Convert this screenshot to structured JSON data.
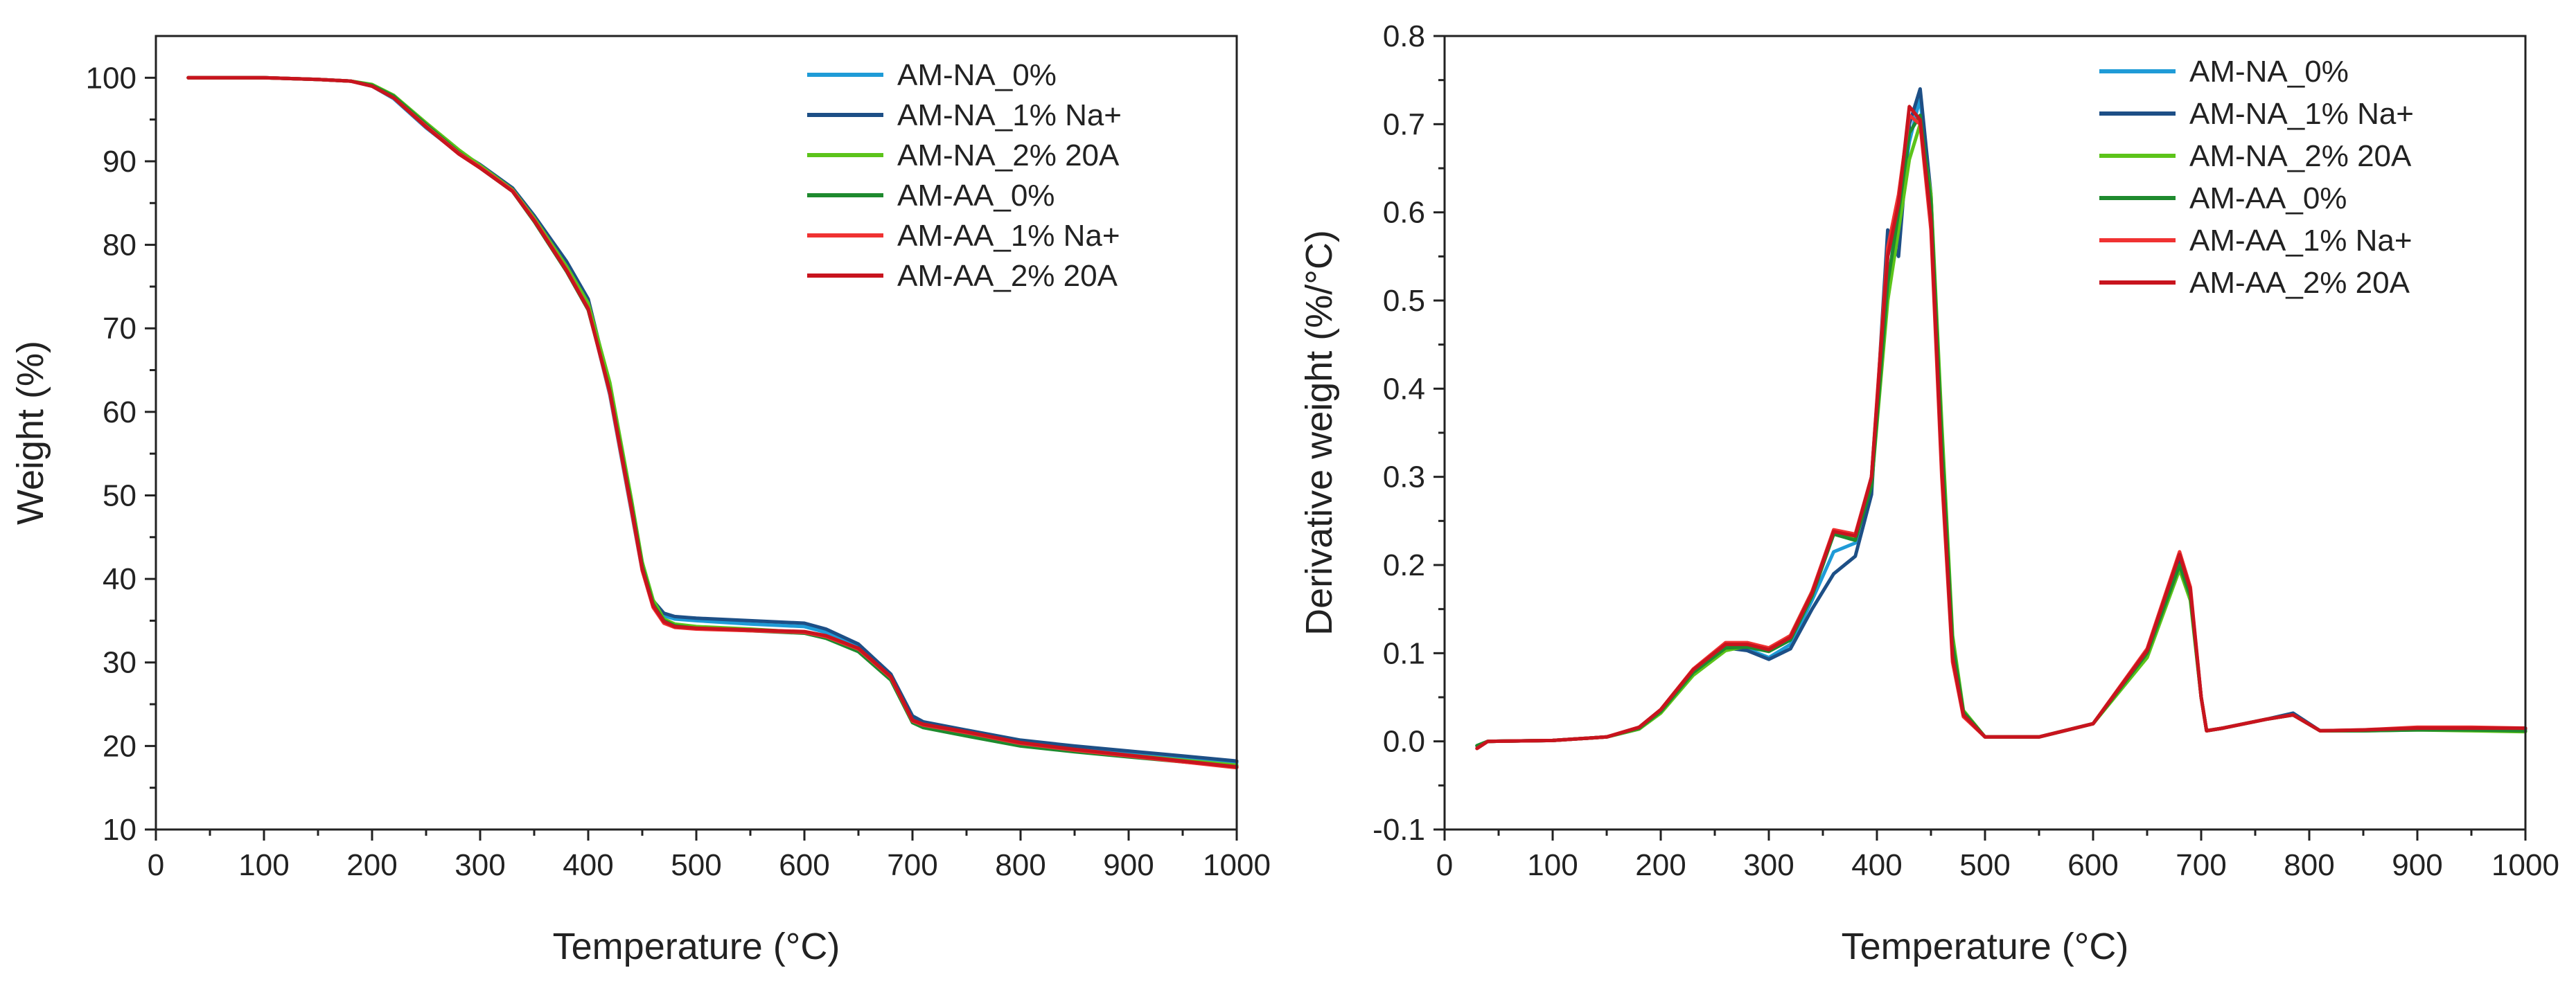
{
  "chart_data": [
    {
      "type": "line",
      "title": "",
      "xlabel": "Temperature (°C)",
      "ylabel": "Weight (%)",
      "xlim": [
        0,
        1000
      ],
      "ylim": [
        10,
        105
      ],
      "xticks": [
        0,
        100,
        200,
        300,
        400,
        500,
        600,
        700,
        800,
        900,
        1000
      ],
      "yticks": [
        10,
        20,
        30,
        40,
        50,
        60,
        70,
        80,
        90,
        100
      ],
      "grid": false,
      "legend_position": "top-right",
      "series": [
        {
          "name": "AM-NA_0%",
          "color": "#1f9bd7",
          "x": [
            30,
            100,
            150,
            180,
            200,
            220,
            250,
            280,
            300,
            330,
            350,
            380,
            400,
            420,
            440,
            450,
            460,
            470,
            480,
            500,
            550,
            600,
            620,
            650,
            680,
            700,
            710,
            750,
            800,
            850,
            900,
            950,
            1000
          ],
          "y": [
            100,
            100,
            99.8,
            99.6,
            99,
            97.5,
            94,
            91,
            89.3,
            86.5,
            83,
            77,
            72.5,
            62,
            48,
            41,
            37,
            35.6,
            35.2,
            35,
            34.6,
            34.3,
            33.6,
            32,
            28.5,
            23.5,
            22.8,
            21.8,
            20.5,
            19.8,
            19.2,
            18.6,
            18
          ]
        },
        {
          "name": "AM-NA_1% Na+",
          "color": "#1d4f86",
          "x": [
            30,
            100,
            150,
            180,
            200,
            220,
            250,
            280,
            300,
            330,
            350,
            380,
            400,
            420,
            440,
            450,
            460,
            470,
            480,
            500,
            550,
            600,
            620,
            650,
            680,
            700,
            710,
            750,
            800,
            850,
            900,
            950,
            1000
          ],
          "y": [
            100,
            100,
            99.8,
            99.6,
            99.1,
            97.7,
            94.3,
            91.2,
            89.6,
            86.8,
            83.5,
            78,
            73.5,
            63,
            48.5,
            41.3,
            37.4,
            35.9,
            35.5,
            35.3,
            35,
            34.7,
            34,
            32.2,
            28.6,
            23.6,
            22.9,
            21.9,
            20.7,
            20,
            19.4,
            18.8,
            18.2
          ]
        },
        {
          "name": "AM-NA_2% 20A",
          "color": "#5cc41a",
          "x": [
            30,
            100,
            150,
            180,
            200,
            220,
            250,
            280,
            300,
            330,
            350,
            380,
            400,
            420,
            440,
            450,
            460,
            470,
            480,
            500,
            550,
            600,
            620,
            650,
            680,
            700,
            710,
            750,
            800,
            850,
            900,
            950,
            1000
          ],
          "y": [
            100,
            100,
            99.8,
            99.6,
            99.2,
            97.9,
            94.6,
            91.4,
            89.5,
            86.6,
            83.2,
            77.4,
            73,
            63.5,
            49.5,
            42,
            37.5,
            35.2,
            34.6,
            34.3,
            34,
            33.6,
            33,
            31.4,
            28,
            23,
            22.4,
            21.4,
            20.2,
            19.5,
            18.9,
            18.3,
            17.7
          ]
        },
        {
          "name": "AM-AA_0%",
          "color": "#1e8a2e",
          "x": [
            30,
            100,
            150,
            180,
            200,
            220,
            250,
            280,
            300,
            330,
            350,
            380,
            400,
            420,
            440,
            450,
            460,
            470,
            480,
            500,
            550,
            600,
            620,
            650,
            680,
            700,
            710,
            750,
            800,
            850,
            900,
            950,
            1000
          ],
          "y": [
            100,
            100,
            99.8,
            99.6,
            99.1,
            97.8,
            94.4,
            91.1,
            89.2,
            86.4,
            82.8,
            76.8,
            72.2,
            62.5,
            48.8,
            41.5,
            37,
            35,
            34.4,
            34.1,
            33.8,
            33.5,
            32.9,
            31.3,
            27.9,
            22.8,
            22.2,
            21.2,
            20,
            19.3,
            18.7,
            18.1,
            17.5
          ]
        },
        {
          "name": "AM-AA_1% Na+",
          "color": "#f03232",
          "x": [
            30,
            100,
            150,
            180,
            200,
            220,
            250,
            280,
            300,
            330,
            350,
            380,
            400,
            420,
            440,
            450,
            460,
            470,
            480,
            500,
            550,
            600,
            620,
            650,
            680,
            700,
            710,
            750,
            800,
            850,
            900,
            950,
            1000
          ],
          "y": [
            100,
            100,
            99.8,
            99.6,
            99,
            97.6,
            94.2,
            91,
            89.3,
            86.5,
            83,
            77,
            72.4,
            62.2,
            48.2,
            41,
            36.6,
            34.7,
            34.2,
            34,
            33.8,
            33.6,
            33.1,
            31.6,
            28.2,
            23,
            22.5,
            21.6,
            20.3,
            19.5,
            18.8,
            18.1,
            17.4
          ]
        },
        {
          "name": "AM-AA_2% 20A",
          "color": "#c8141e",
          "x": [
            30,
            100,
            150,
            180,
            200,
            220,
            250,
            280,
            300,
            330,
            350,
            380,
            400,
            420,
            440,
            450,
            460,
            470,
            480,
            500,
            550,
            600,
            620,
            650,
            680,
            700,
            710,
            750,
            800,
            850,
            900,
            950,
            1000
          ],
          "y": [
            100,
            100,
            99.8,
            99.6,
            99,
            97.6,
            94.1,
            90.9,
            89.2,
            86.4,
            82.9,
            76.9,
            72.3,
            62.4,
            48.5,
            41.2,
            36.8,
            34.9,
            34.3,
            34.1,
            33.9,
            33.7,
            33.2,
            31.7,
            28.3,
            23.1,
            22.6,
            21.7,
            20.4,
            19.6,
            18.9,
            18.2,
            17.5
          ]
        }
      ]
    },
    {
      "type": "line",
      "title": "",
      "xlabel": "Temperature (°C)",
      "ylabel": "Derivative weight (%/°C)",
      "xlim": [
        0,
        1000
      ],
      "ylim": [
        -0.1,
        0.8
      ],
      "xticks": [
        0,
        100,
        200,
        300,
        400,
        500,
        600,
        700,
        800,
        900,
        1000
      ],
      "yticks": [
        -0.1,
        0.0,
        0.1,
        0.2,
        0.3,
        0.4,
        0.5,
        0.6,
        0.7,
        0.8
      ],
      "grid": false,
      "legend_position": "top-center",
      "series": [
        {
          "name": "AM-NA_0%",
          "color": "#1f9bd7",
          "x": [
            30,
            40,
            100,
            150,
            180,
            200,
            230,
            260,
            280,
            300,
            320,
            340,
            360,
            380,
            395,
            410,
            420,
            430,
            440,
            450,
            460,
            470,
            480,
            500,
            550,
            600,
            650,
            680,
            690,
            700,
            705,
            720,
            760,
            785,
            810,
            850,
            900,
            950,
            1000
          ],
          "y": [
            -0.005,
            0,
            0.001,
            0.005,
            0.015,
            0.035,
            0.08,
            0.108,
            0.105,
            0.095,
            0.11,
            0.16,
            0.215,
            0.225,
            0.3,
            0.55,
            0.6,
            0.68,
            0.73,
            0.6,
            0.32,
            0.1,
            0.03,
            0.005,
            0.005,
            0.02,
            0.1,
            0.21,
            0.17,
            0.05,
            0.012,
            0.015,
            0.025,
            0.03,
            0.012,
            0.012,
            0.014,
            0.014,
            0.014
          ]
        },
        {
          "name": "AM-NA_1% Na+",
          "color": "#1d4f86",
          "x": [
            30,
            40,
            100,
            150,
            180,
            200,
            230,
            260,
            280,
            300,
            320,
            340,
            360,
            380,
            395,
            410,
            420,
            430,
            440,
            450,
            460,
            470,
            480,
            500,
            550,
            600,
            650,
            680,
            690,
            700,
            705,
            720,
            760,
            785,
            810,
            850,
            900,
            950,
            1000
          ],
          "y": [
            -0.005,
            0,
            0.001,
            0.005,
            0.014,
            0.033,
            0.078,
            0.106,
            0.103,
            0.093,
            0.105,
            0.15,
            0.19,
            0.21,
            0.28,
            0.58,
            0.55,
            0.7,
            0.74,
            0.62,
            0.33,
            0.1,
            0.03,
            0.005,
            0.005,
            0.02,
            0.1,
            0.205,
            0.165,
            0.05,
            0.012,
            0.015,
            0.025,
            0.032,
            0.012,
            0.012,
            0.014,
            0.014,
            0.014
          ]
        },
        {
          "name": "AM-NA_2% 20A",
          "color": "#5cc41a",
          "x": [
            30,
            40,
            100,
            150,
            180,
            200,
            230,
            260,
            280,
            300,
            320,
            340,
            360,
            380,
            395,
            410,
            420,
            430,
            440,
            450,
            460,
            470,
            480,
            500,
            550,
            600,
            650,
            680,
            690,
            700,
            705,
            720,
            760,
            785,
            810,
            850,
            900,
            950,
            1000
          ],
          "y": [
            -0.005,
            0,
            0.001,
            0.005,
            0.014,
            0.032,
            0.075,
            0.103,
            0.108,
            0.105,
            0.12,
            0.17,
            0.235,
            0.23,
            0.29,
            0.5,
            0.58,
            0.66,
            0.7,
            0.62,
            0.36,
            0.12,
            0.035,
            0.005,
            0.005,
            0.02,
            0.095,
            0.195,
            0.16,
            0.05,
            0.012,
            0.015,
            0.025,
            0.03,
            0.012,
            0.012,
            0.013,
            0.012,
            0.011
          ]
        },
        {
          "name": "AM-AA_0%",
          "color": "#1e8a2e",
          "x": [
            30,
            40,
            100,
            150,
            180,
            200,
            230,
            260,
            280,
            300,
            320,
            340,
            360,
            380,
            395,
            410,
            420,
            430,
            440,
            450,
            460,
            470,
            480,
            500,
            550,
            600,
            650,
            680,
            690,
            700,
            705,
            720,
            760,
            785,
            810,
            850,
            900,
            950,
            1000
          ],
          "y": [
            -0.005,
            0,
            0.001,
            0.005,
            0.015,
            0.034,
            0.078,
            0.106,
            0.107,
            0.102,
            0.115,
            0.165,
            0.235,
            0.228,
            0.29,
            0.52,
            0.6,
            0.69,
            0.71,
            0.61,
            0.34,
            0.11,
            0.033,
            0.005,
            0.005,
            0.02,
            0.1,
            0.2,
            0.165,
            0.05,
            0.012,
            0.015,
            0.025,
            0.03,
            0.012,
            0.012,
            0.013,
            0.013,
            0.012
          ]
        },
        {
          "name": "AM-AA_1% Na+",
          "color": "#f03232",
          "x": [
            30,
            40,
            100,
            150,
            180,
            200,
            230,
            260,
            280,
            300,
            320,
            340,
            360,
            380,
            395,
            410,
            420,
            430,
            440,
            450,
            460,
            470,
            480,
            500,
            550,
            600,
            650,
            680,
            690,
            700,
            705,
            720,
            760,
            785,
            810,
            850,
            900,
            950,
            1000
          ],
          "y": [
            -0.008,
            0,
            0.001,
            0.005,
            0.016,
            0.036,
            0.082,
            0.112,
            0.112,
            0.106,
            0.12,
            0.17,
            0.24,
            0.235,
            0.3,
            0.56,
            0.62,
            0.71,
            0.7,
            0.58,
            0.3,
            0.09,
            0.028,
            0.005,
            0.005,
            0.02,
            0.105,
            0.215,
            0.175,
            0.05,
            0.012,
            0.015,
            0.025,
            0.03,
            0.012,
            0.013,
            0.016,
            0.016,
            0.015
          ]
        },
        {
          "name": "AM-AA_2% 20A",
          "color": "#c8141e",
          "x": [
            30,
            40,
            100,
            150,
            180,
            200,
            230,
            260,
            280,
            300,
            320,
            340,
            360,
            380,
            395,
            410,
            420,
            430,
            440,
            450,
            460,
            470,
            480,
            500,
            550,
            600,
            650,
            680,
            690,
            700,
            705,
            720,
            760,
            785,
            810,
            850,
            900,
            950,
            1000
          ],
          "y": [
            -0.008,
            0,
            0.001,
            0.005,
            0.016,
            0.036,
            0.081,
            0.11,
            0.11,
            0.104,
            0.118,
            0.168,
            0.238,
            0.233,
            0.3,
            0.55,
            0.61,
            0.72,
            0.705,
            0.59,
            0.31,
            0.095,
            0.03,
            0.005,
            0.005,
            0.02,
            0.103,
            0.212,
            0.172,
            0.05,
            0.012,
            0.015,
            0.025,
            0.03,
            0.012,
            0.013,
            0.015,
            0.015,
            0.015
          ]
        }
      ]
    }
  ]
}
